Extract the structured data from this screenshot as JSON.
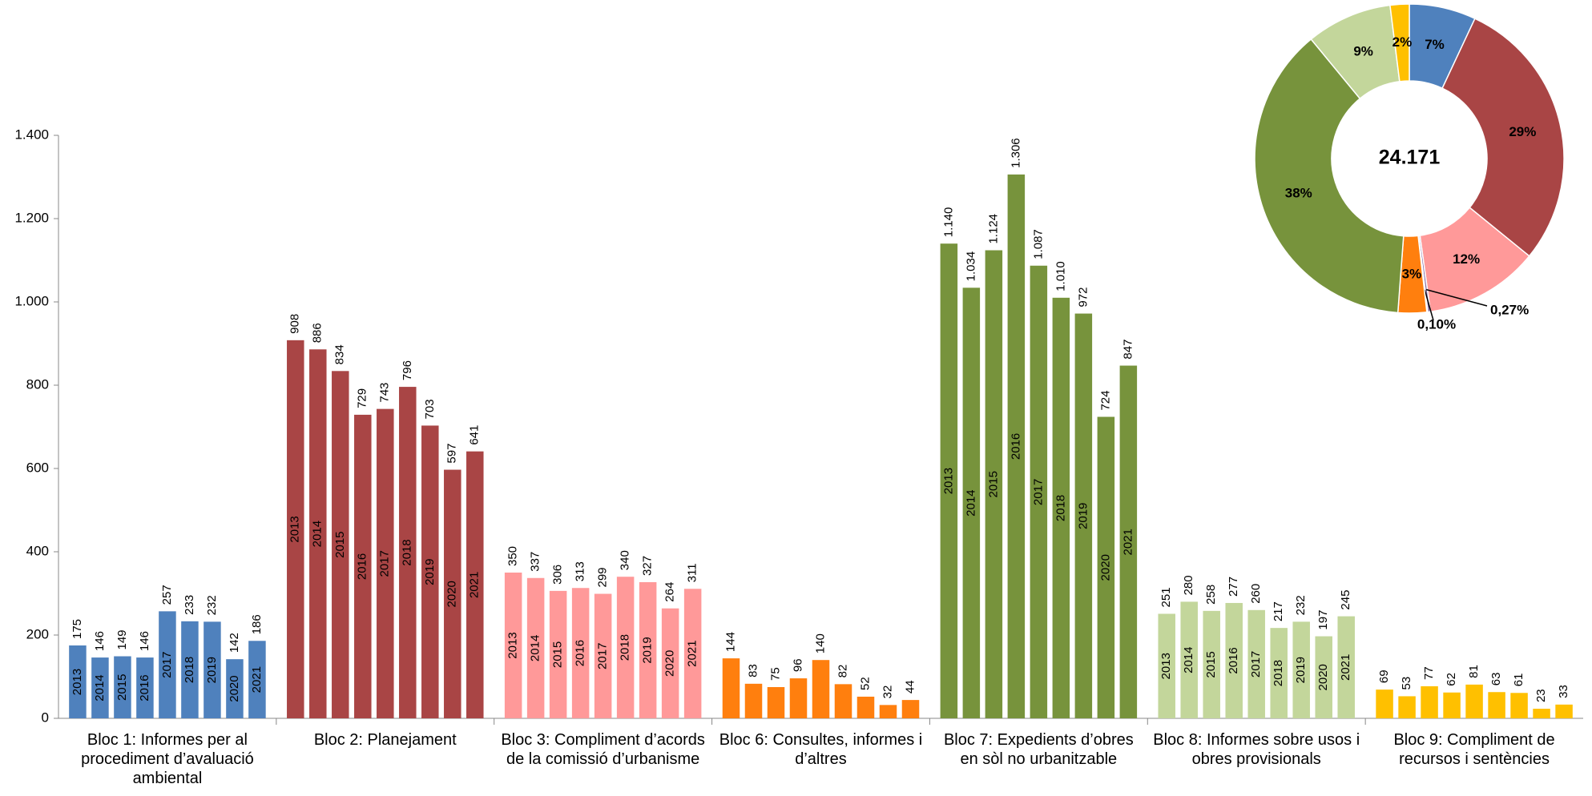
{
  "chart_data": [
    {
      "type": "bar",
      "years": [
        "2013",
        "2014",
        "2015",
        "2016",
        "2017",
        "2018",
        "2019",
        "2020",
        "2021"
      ],
      "groups": [
        {
          "name": "Bloc 1: Informes per al procediment d’avaluació ambiental",
          "color": "#4f81bd",
          "inner_labels": true,
          "values": [
            175,
            146,
            149,
            146,
            257,
            233,
            232,
            142,
            186
          ]
        },
        {
          "name": "Bloc 2: Planejament",
          "color": "#a94545",
          "inner_labels": true,
          "values": [
            908,
            886,
            834,
            729,
            743,
            796,
            703,
            597,
            641
          ]
        },
        {
          "name": "Bloc 3: Compliment d’acords de la comissió d’urbanisme",
          "color": "#ff9999",
          "inner_labels": true,
          "values": [
            350,
            337,
            306,
            313,
            299,
            340,
            327,
            264,
            311
          ]
        },
        {
          "name": "Bloc 6: Consultes, informes i d’altres",
          "color": "#ff7f0e",
          "inner_labels": false,
          "values": [
            144,
            83,
            75,
            96,
            140,
            82,
            52,
            32,
            44
          ]
        },
        {
          "name": "Bloc 7: Expedients d’obres en sòl no urbanitzable",
          "color": "#77933c",
          "inner_labels": true,
          "values": [
            1140,
            1034,
            1124,
            1306,
            1087,
            1010,
            972,
            724,
            847
          ],
          "value_labels": [
            "1.140",
            "1.034",
            "1.124",
            "1.306",
            "1.087",
            "1.010",
            "972",
            "724",
            "847"
          ]
        },
        {
          "name": "Bloc 8: Informes sobre usos i obres provisionals",
          "color": "#c3d69b",
          "inner_labels": true,
          "values": [
            251,
            280,
            258,
            277,
            260,
            217,
            232,
            197,
            245
          ]
        },
        {
          "name": "Bloc 9: Compliment de recursos i sentències",
          "color": "#ffc000",
          "inner_labels": false,
          "values": [
            69,
            53,
            77,
            62,
            81,
            63,
            61,
            23,
            33
          ]
        }
      ],
      "ylim": [
        0,
        1400
      ],
      "yticks": [
        0,
        200,
        400,
        600,
        800,
        {
          "value": 1000,
          "label": "1.000"
        },
        {
          "value": 1200,
          "label": "1.200"
        },
        {
          "value": 1400,
          "label": "1.400"
        }
      ]
    },
    {
      "type": "pie",
      "center_label": "24.171",
      "values": [
        7,
        29,
        12,
        0.27,
        0.1,
        3,
        38,
        9,
        2
      ],
      "value_labels": [
        "7%",
        "29%",
        "12%",
        "0,27%",
        "0,10%",
        "3%",
        "38%",
        "9%",
        "2%"
      ],
      "colors": [
        "#4f81bd",
        "#a94545",
        "#ff9999",
        "#8064a2",
        "#a6a6a6",
        "#ff7f0e",
        "#77933c",
        "#c3d69b",
        "#ffc000"
      ]
    }
  ]
}
